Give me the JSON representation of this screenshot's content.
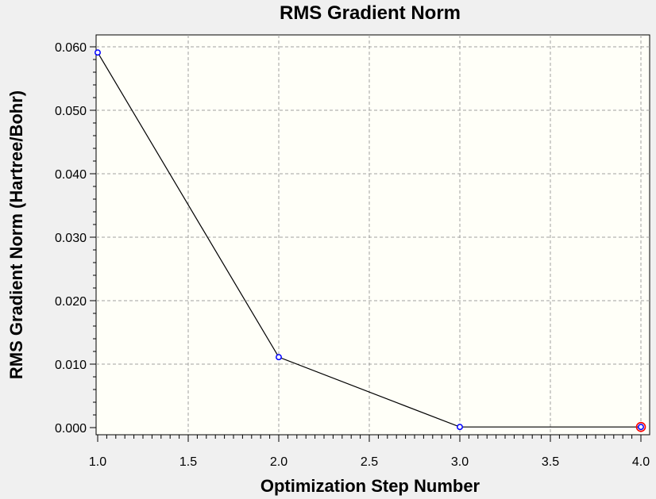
{
  "chart_data": {
    "type": "line",
    "title": "RMS Gradient Norm",
    "xlabel": "Optimization Step Number",
    "ylabel": "RMS Gradient Norm (Hartree/Bohr)",
    "xlim": [
      1.0,
      4.0
    ],
    "ylim": [
      0.0,
      0.06
    ],
    "grid": true,
    "x_ticks": [
      1.0,
      1.5,
      2.0,
      2.5,
      3.0,
      3.5,
      4.0
    ],
    "x_tick_labels": [
      "1.0",
      "1.5",
      "2.0",
      "2.5",
      "3.0",
      "3.5",
      "4.0"
    ],
    "y_ticks": [
      0.0,
      0.01,
      0.02,
      0.03,
      0.04,
      0.05,
      0.06
    ],
    "y_tick_labels": [
      "0.000",
      "0.010",
      "0.020",
      "0.030",
      "0.040",
      "0.050",
      "0.060"
    ],
    "series": [
      {
        "x": [
          1,
          2,
          3,
          4
        ],
        "y": [
          0.0591,
          0.0111,
          0.0001,
          0.0001
        ],
        "line_color": "#000000",
        "marker_color": "#0000ff"
      }
    ],
    "highlight": {
      "x": 4,
      "y": 0.0001,
      "color": "#ff0000"
    },
    "plot_background": "#fffff8",
    "grid_color": "#a0a0a0"
  }
}
